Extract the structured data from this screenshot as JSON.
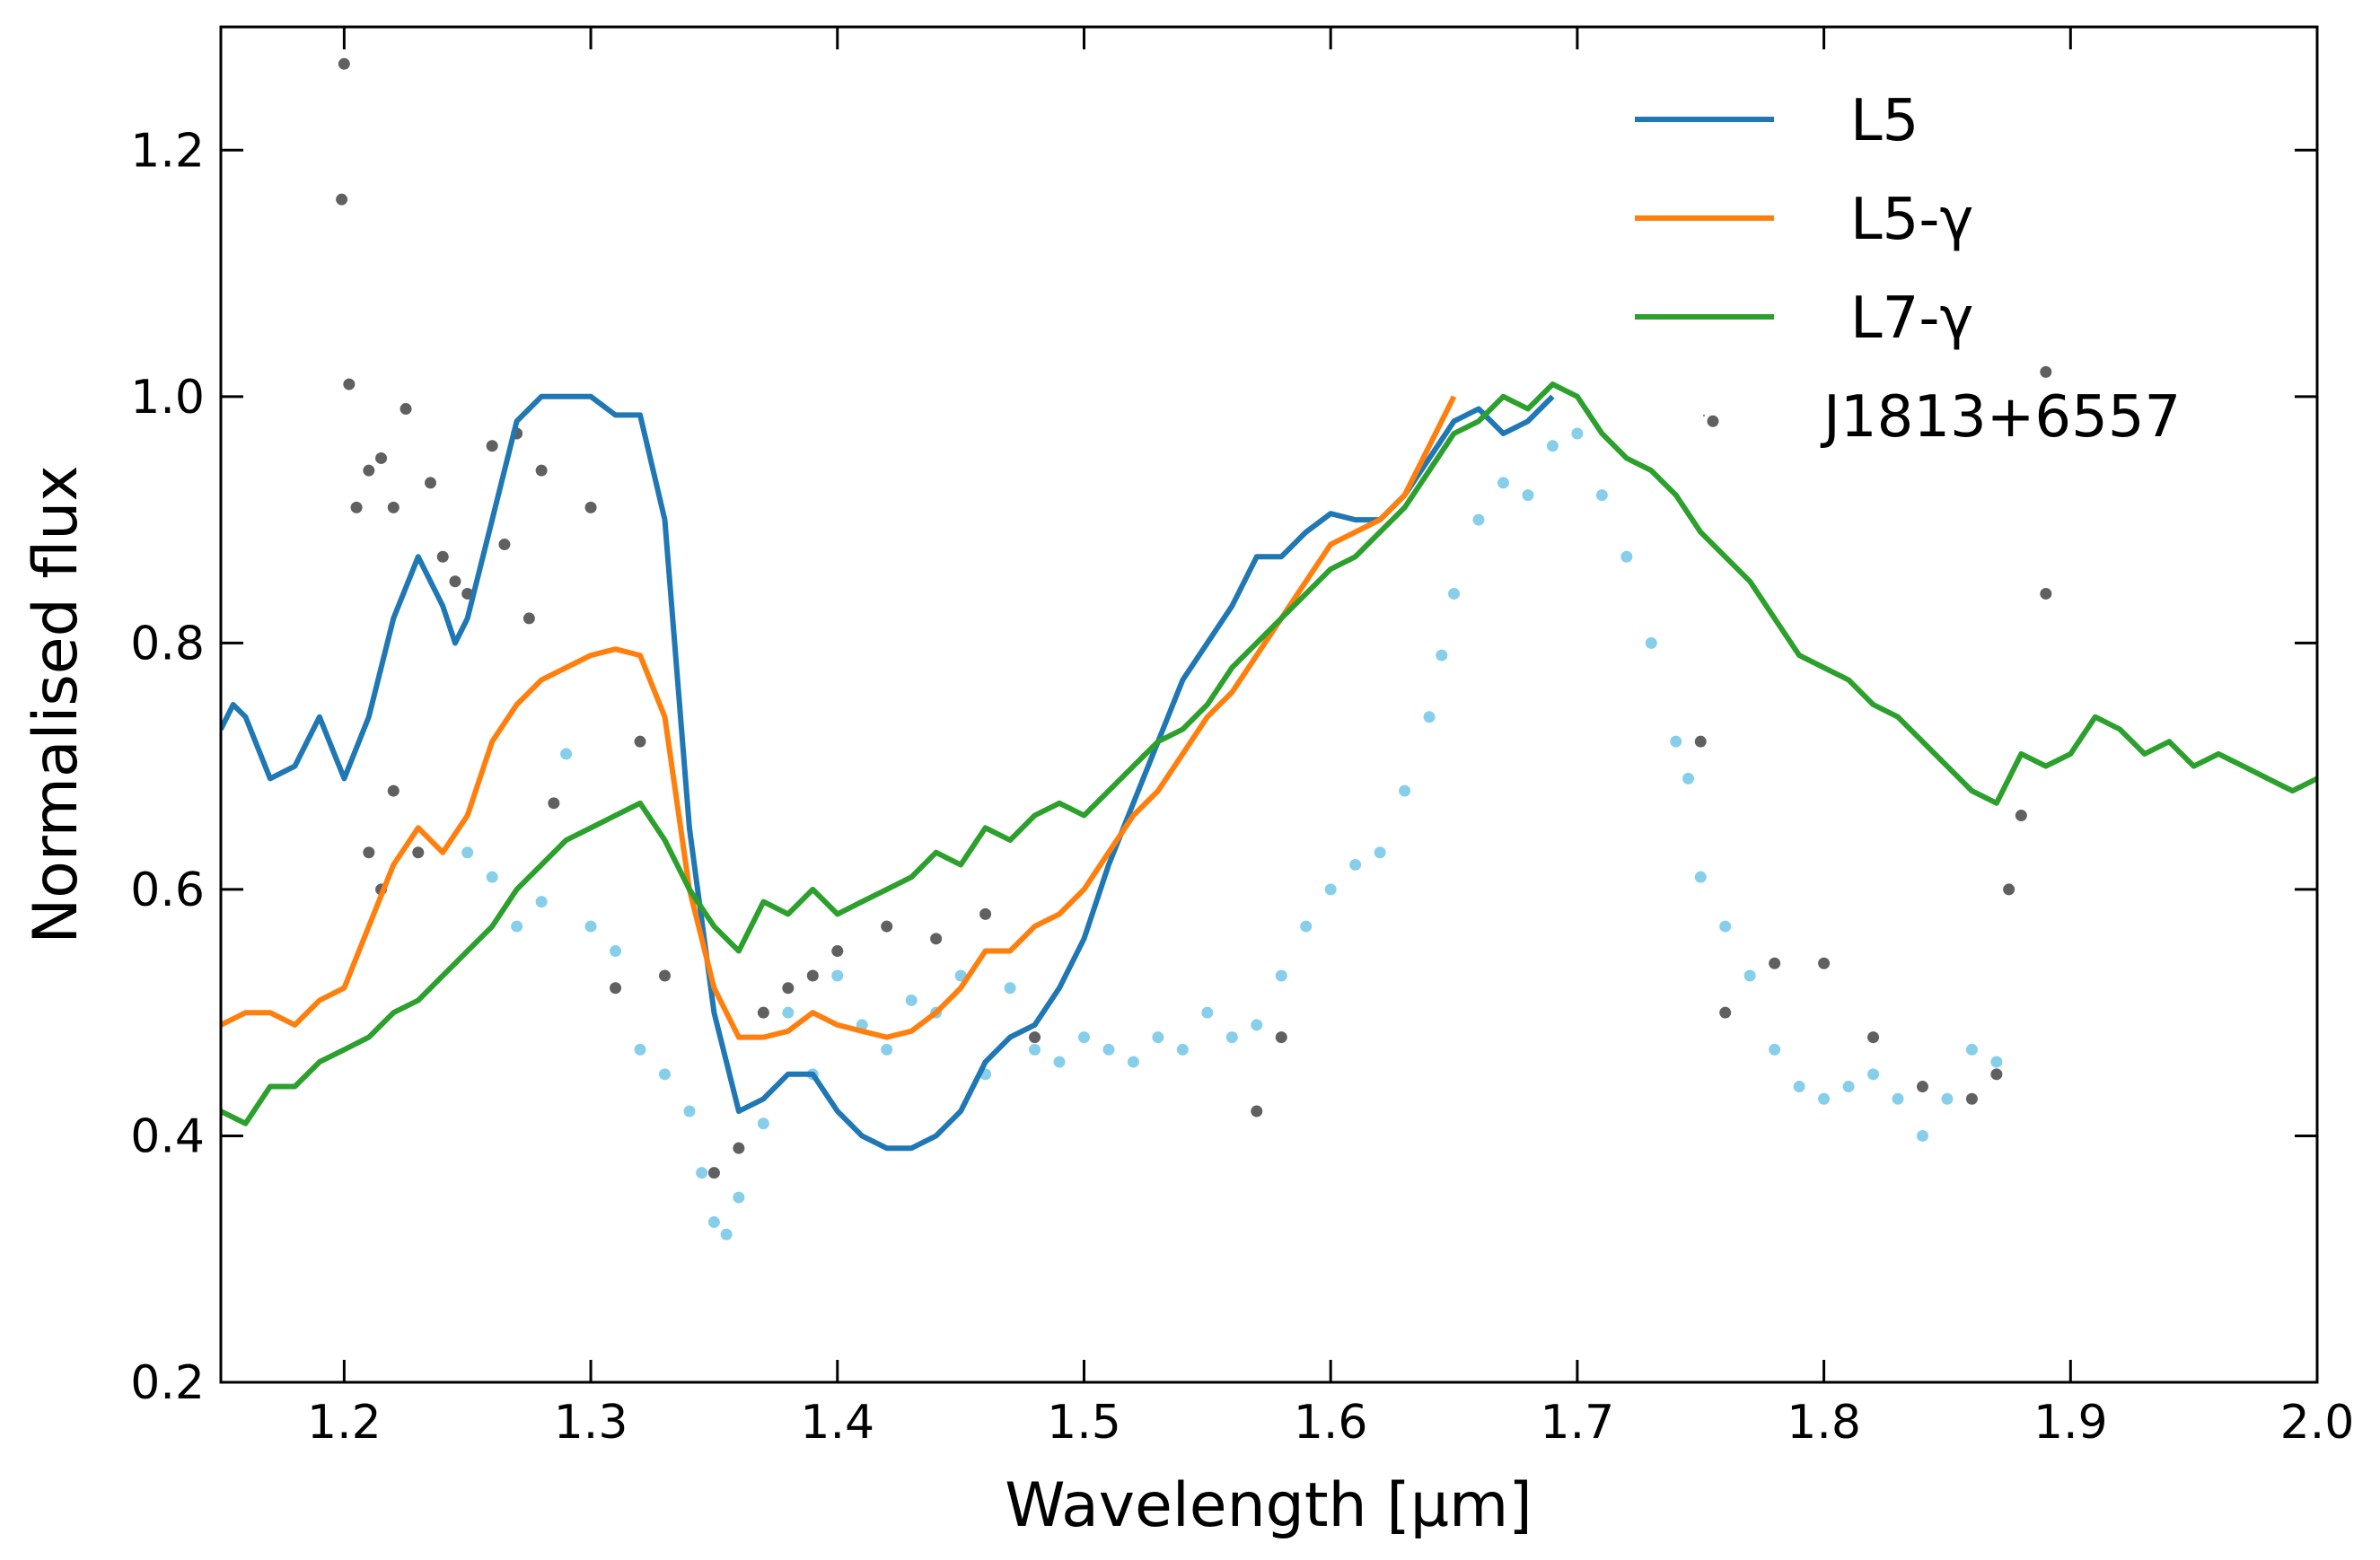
{
  "chart_data": {
    "type": "line",
    "xlabel": "Wavelength [µm]",
    "ylabel": "Normalised flux",
    "xlim": [
      1.15,
      2.0
    ],
    "ylim": [
      0.2,
      1.3
    ],
    "xticks": [
      1.2,
      1.3,
      1.4,
      1.5,
      1.6,
      1.7,
      1.8,
      1.9,
      {
        "value": 2,
        "label": "2.0"
      }
    ],
    "yticks": [
      0.2,
      0.4,
      0.6,
      0.8,
      {
        "value": 1,
        "label": "1.0"
      },
      1.2
    ],
    "legend": "upper right",
    "series": [
      {
        "name": "L5",
        "color": "#1f77b4",
        "type": "line",
        "x": [
          1.15,
          1.155,
          1.16,
          1.17,
          1.18,
          1.19,
          1.2,
          1.21,
          1.22,
          1.23,
          1.24,
          1.245,
          1.25,
          1.26,
          1.27,
          1.28,
          1.29,
          1.3,
          1.31,
          1.32,
          1.33,
          1.34,
          1.35,
          1.36,
          1.37,
          1.38,
          1.39,
          1.4,
          1.41,
          1.42,
          1.43,
          1.44,
          1.45,
          1.46,
          1.47,
          1.48,
          1.49,
          1.5,
          1.51,
          1.52,
          1.53,
          1.54,
          1.55,
          1.56,
          1.57,
          1.58,
          1.59,
          1.6,
          1.61,
          1.62,
          1.63,
          1.64,
          1.65,
          1.66,
          1.67,
          1.68,
          1.69
        ],
        "values": [
          0.73,
          0.75,
          0.74,
          0.69,
          0.7,
          0.74,
          0.69,
          0.74,
          0.82,
          0.87,
          0.83,
          0.8,
          0.82,
          0.9,
          0.98,
          1.0,
          1.0,
          1.0,
          0.985,
          0.985,
          0.9,
          0.65,
          0.5,
          0.42,
          0.43,
          0.45,
          0.45,
          0.42,
          0.4,
          0.39,
          0.39,
          0.4,
          0.42,
          0.46,
          0.48,
          0.49,
          0.52,
          0.56,
          0.62,
          0.67,
          0.72,
          0.77,
          0.8,
          0.83,
          0.87,
          0.87,
          0.89,
          0.905,
          0.9,
          0.9,
          0.92,
          0.95,
          0.98,
          0.99,
          0.97,
          0.98,
          1.0
        ]
      },
      {
        "name": "L5-γ",
        "color": "#ff7f0e",
        "type": "line",
        "x": [
          1.15,
          1.16,
          1.17,
          1.18,
          1.19,
          1.2,
          1.21,
          1.22,
          1.23,
          1.24,
          1.25,
          1.26,
          1.27,
          1.28,
          1.29,
          1.3,
          1.31,
          1.32,
          1.33,
          1.34,
          1.35,
          1.36,
          1.37,
          1.38,
          1.39,
          1.4,
          1.41,
          1.42,
          1.43,
          1.44,
          1.45,
          1.46,
          1.47,
          1.48,
          1.49,
          1.5,
          1.51,
          1.52,
          1.53,
          1.54,
          1.55,
          1.56,
          1.57,
          1.58,
          1.59,
          1.6,
          1.61,
          1.62,
          1.63,
          1.64,
          1.65
        ],
        "values": [
          0.49,
          0.5,
          0.5,
          0.49,
          0.51,
          0.52,
          0.57,
          0.62,
          0.65,
          0.63,
          0.66,
          0.72,
          0.75,
          0.77,
          0.78,
          0.79,
          0.795,
          0.79,
          0.74,
          0.6,
          0.52,
          0.48,
          0.48,
          0.485,
          0.5,
          0.49,
          0.485,
          0.48,
          0.485,
          0.5,
          0.52,
          0.55,
          0.55,
          0.57,
          0.58,
          0.6,
          0.63,
          0.66,
          0.68,
          0.71,
          0.74,
          0.76,
          0.79,
          0.82,
          0.85,
          0.88,
          0.89,
          0.9,
          0.92,
          0.96,
          1.0
        ]
      },
      {
        "name": "L7-γ",
        "color": "#2ca02c",
        "type": "line",
        "x": [
          1.15,
          1.16,
          1.17,
          1.18,
          1.19,
          1.2,
          1.21,
          1.22,
          1.23,
          1.24,
          1.25,
          1.26,
          1.27,
          1.28,
          1.29,
          1.3,
          1.31,
          1.32,
          1.33,
          1.34,
          1.35,
          1.36,
          1.37,
          1.38,
          1.39,
          1.4,
          1.41,
          1.42,
          1.43,
          1.44,
          1.45,
          1.46,
          1.47,
          1.48,
          1.49,
          1.5,
          1.51,
          1.52,
          1.53,
          1.54,
          1.55,
          1.56,
          1.57,
          1.58,
          1.59,
          1.6,
          1.61,
          1.62,
          1.63,
          1.64,
          1.65,
          1.66,
          1.67,
          1.68,
          1.69,
          1.7,
          1.71,
          1.72,
          1.73,
          1.74,
          1.75,
          1.76,
          1.77,
          1.78,
          1.79,
          1.8,
          1.81,
          1.82,
          1.83,
          1.84,
          1.85,
          1.86,
          1.87,
          1.88,
          1.89,
          1.9,
          1.91,
          1.92,
          1.93,
          1.94,
          1.95,
          1.96,
          1.97,
          1.98,
          1.99,
          2.0
        ],
        "values": [
          0.42,
          0.41,
          0.44,
          0.44,
          0.46,
          0.47,
          0.48,
          0.5,
          0.51,
          0.53,
          0.55,
          0.57,
          0.6,
          0.62,
          0.64,
          0.65,
          0.66,
          0.67,
          0.64,
          0.6,
          0.57,
          0.55,
          0.59,
          0.58,
          0.6,
          0.58,
          0.59,
          0.6,
          0.61,
          0.63,
          0.62,
          0.65,
          0.64,
          0.66,
          0.67,
          0.66,
          0.68,
          0.7,
          0.72,
          0.73,
          0.75,
          0.78,
          0.8,
          0.82,
          0.84,
          0.86,
          0.87,
          0.89,
          0.91,
          0.94,
          0.97,
          0.98,
          1.0,
          0.99,
          1.01,
          1.0,
          0.97,
          0.95,
          0.94,
          0.92,
          0.89,
          0.87,
          0.85,
          0.82,
          0.79,
          0.78,
          0.77,
          0.75,
          0.74,
          0.72,
          0.7,
          0.68,
          0.67,
          0.71,
          0.7,
          0.71,
          0.74,
          0.73,
          0.71,
          0.72,
          0.7,
          0.71,
          0.7,
          0.69,
          0.68,
          0.69
        ]
      },
      {
        "name": "J1813+6557",
        "color": "#606060",
        "type": "scatter",
        "x": [
          1.2,
          1.199,
          1.202,
          1.205,
          1.21,
          1.215,
          1.22,
          1.225,
          1.22,
          1.21,
          1.215,
          1.23,
          1.235,
          1.24,
          1.245,
          1.25,
          1.26,
          1.265,
          1.27,
          1.275,
          1.28,
          1.285,
          1.3,
          1.31,
          1.32,
          1.33,
          1.35,
          1.36,
          1.37,
          1.38,
          1.39,
          1.4,
          1.42,
          1.44,
          1.46,
          1.48,
          1.57,
          1.58,
          1.75,
          1.755,
          1.76,
          1.78,
          1.8,
          1.82,
          1.84,
          1.86,
          1.87,
          1.875,
          1.88,
          1.89,
          1.89
        ],
        "values": [
          1.27,
          1.16,
          1.01,
          0.91,
          0.94,
          0.95,
          0.91,
          0.99,
          0.68,
          0.63,
          0.6,
          0.63,
          0.93,
          0.87,
          0.85,
          0.84,
          0.96,
          0.88,
          0.97,
          0.82,
          0.94,
          0.67,
          0.91,
          0.52,
          0.72,
          0.53,
          0.37,
          0.39,
          0.5,
          0.52,
          0.53,
          0.55,
          0.57,
          0.56,
          0.58,
          0.48,
          0.42,
          0.48,
          0.72,
          0.98,
          0.5,
          0.54,
          0.54,
          0.48,
          0.44,
          0.43,
          0.45,
          0.6,
          0.66,
          1.02,
          0.84
        ]
      },
      {
        "color": "#87ceeb",
        "type": "scatter",
        "x": [
          1.25,
          1.26,
          1.27,
          1.28,
          1.29,
          1.3,
          1.31,
          1.32,
          1.33,
          1.34,
          1.345,
          1.35,
          1.355,
          1.36,
          1.37,
          1.38,
          1.39,
          1.4,
          1.41,
          1.42,
          1.43,
          1.44,
          1.45,
          1.46,
          1.47,
          1.48,
          1.49,
          1.5,
          1.51,
          1.52,
          1.53,
          1.54,
          1.55,
          1.56,
          1.57,
          1.58,
          1.59,
          1.6,
          1.61,
          1.62,
          1.63,
          1.64,
          1.645,
          1.65,
          1.66,
          1.67,
          1.68,
          1.69,
          1.7,
          1.71,
          1.72,
          1.73,
          1.74,
          1.745,
          1.75,
          1.76,
          1.77,
          1.78,
          1.79,
          1.8,
          1.81,
          1.82,
          1.83,
          1.84,
          1.85,
          1.86,
          1.87
        ],
        "values": [
          0.63,
          0.61,
          0.57,
          0.59,
          0.71,
          0.57,
          0.55,
          0.47,
          0.45,
          0.42,
          0.37,
          0.33,
          0.32,
          0.35,
          0.41,
          0.5,
          0.45,
          0.53,
          0.49,
          0.47,
          0.51,
          0.5,
          0.53,
          0.45,
          0.52,
          0.47,
          0.46,
          0.48,
          0.47,
          0.46,
          0.48,
          0.47,
          0.5,
          0.48,
          0.49,
          0.53,
          0.57,
          0.6,
          0.62,
          0.63,
          0.68,
          0.74,
          0.79,
          0.84,
          0.9,
          0.93,
          0.92,
          0.96,
          0.97,
          0.92,
          0.87,
          0.8,
          0.72,
          0.69,
          0.61,
          0.57,
          0.53,
          0.47,
          0.44,
          0.43,
          0.44,
          0.45,
          0.43,
          0.4,
          0.43,
          0.47,
          0.46
        ]
      }
    ]
  }
}
